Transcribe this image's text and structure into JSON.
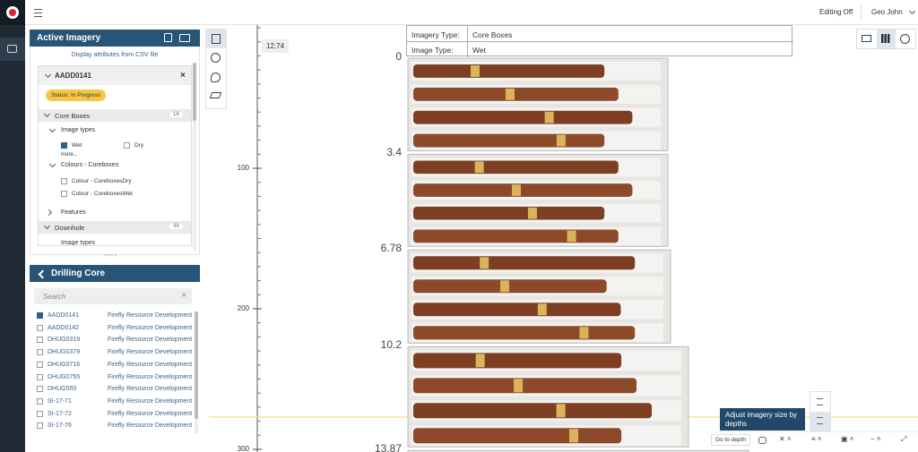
{
  "top_bar": {
    "editing": "Editing Off",
    "user": "Geo John"
  },
  "active_imagery": {
    "title": "Active Imagery",
    "csv_link": "Display attributes from CSV file",
    "hole": "AADD0141",
    "status": "Status: In Progress",
    "core_boxes": {
      "label": "Core Boxes",
      "count": 18
    },
    "image_types": {
      "label": "Image types",
      "options": [
        {
          "label": "Wet",
          "checked": true
        },
        {
          "label": "Dry",
          "checked": false
        }
      ],
      "more": "more..."
    },
    "colours": {
      "label": "Colours - Coreboxes",
      "options": [
        {
          "label": "Colour - CoreboxesDry",
          "checked": false
        },
        {
          "label": "Colour - CoreboxesWet",
          "checked": false
        }
      ]
    },
    "features": "Features",
    "downhole": {
      "label": "Downhole",
      "count": 39
    },
    "downhole_child": "Image types"
  },
  "drilling_core": {
    "title": "Drilling Core",
    "search_placeholder": "Search",
    "rows": [
      {
        "id": "AADD0141",
        "org": "Firefly Resource Development",
        "checked": true
      },
      {
        "id": "AADD0142",
        "org": "Firefly Resource Development",
        "checked": false
      },
      {
        "id": "DHUG0319",
        "org": "Firefly Resource Development",
        "checked": false
      },
      {
        "id": "DHUG0379",
        "org": "Firefly Resource Development",
        "checked": false
      },
      {
        "id": "DHUG0716",
        "org": "Firefly Resource Development",
        "checked": false
      },
      {
        "id": "DHUG0755",
        "org": "Firefly Resource Development",
        "checked": false
      },
      {
        "id": "DHUG550",
        "org": "Firefly Resource Development",
        "checked": false
      },
      {
        "id": "SI-17-71",
        "org": "Firefly Resource Development",
        "checked": false
      },
      {
        "id": "SI-17-72",
        "org": "Firefly Resource Development",
        "checked": false
      },
      {
        "id": "SI-17-76",
        "org": "Firefly Resource Development",
        "checked": false
      }
    ]
  },
  "viewer": {
    "marker": 12.74,
    "scale_ticks": [
      100,
      200,
      300
    ],
    "box_depths": [
      0,
      3.4,
      6.78,
      10.2,
      13.87
    ],
    "info": [
      {
        "key": "Imagery Type:",
        "value": "Core Boxes"
      },
      {
        "key": "Image Type:",
        "value": "Wet"
      }
    ],
    "tooltip": "Adjust imagery size by depths",
    "go_to_depth": "Go to depth"
  }
}
